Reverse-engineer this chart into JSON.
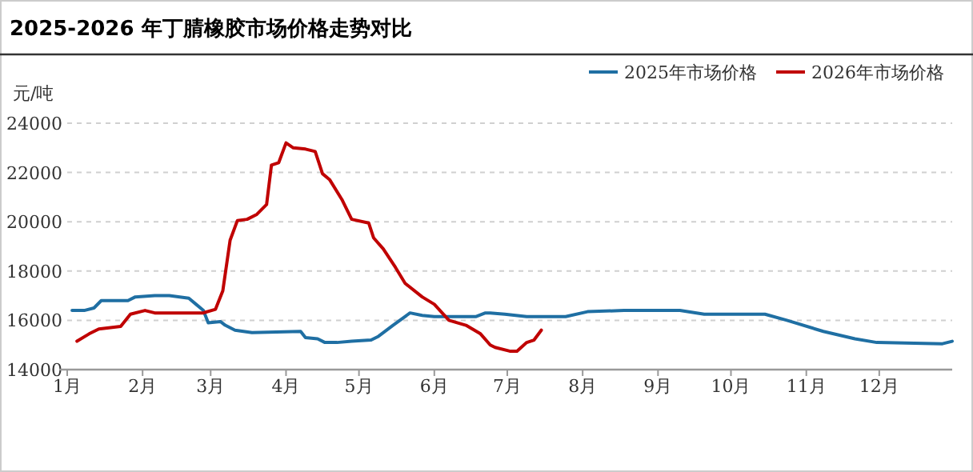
{
  "chart_data": {
    "type": "line",
    "title": "2025-2026 年丁腈橡胶市场价格走势对比",
    "ylabel": "元/吨",
    "xlim": [
      "--01-01",
      "--12-31"
    ],
    "xticks": [
      {
        "value": "--01-01",
        "label": "1月"
      },
      {
        "value": "--02-01",
        "label": "2月"
      },
      {
        "value": "--03-01",
        "label": "3月"
      },
      {
        "value": "--04-01",
        "label": "4月"
      },
      {
        "value": "--05-01",
        "label": "5月"
      },
      {
        "value": "--06-01",
        "label": "6月"
      },
      {
        "value": "--07-01",
        "label": "7月"
      },
      {
        "value": "--08-01",
        "label": "8月"
      },
      {
        "value": "--09-01",
        "label": "9月"
      },
      {
        "value": "--10-01",
        "label": "10月"
      },
      {
        "value": "--11-01",
        "label": "11月"
      },
      {
        "value": "--12-01",
        "label": "12月"
      }
    ],
    "ylim": [
      14000,
      24000
    ],
    "yticks": [
      14000,
      16000,
      18000,
      20000,
      22000,
      24000
    ],
    "grid": "y",
    "legend": "top right",
    "series": [
      {
        "name": "2025年市场价格",
        "color": "#1f6fa3",
        "x": [
          "--01-03",
          "--01-08",
          "--01-12",
          "--01-15",
          "--01-26",
          "--01-29",
          "--02-06",
          "--02-12",
          "--02-20",
          "--02-23",
          "--02-26",
          "--02-28",
          "--03-05",
          "--03-07",
          "--03-11",
          "--03-18",
          "--04-07",
          "--04-09",
          "--04-14",
          "--04-17",
          "--04-22",
          "--04-28",
          "--05-06",
          "--05-09",
          "--05-15",
          "--05-22",
          "--05-27",
          "--06-01",
          "--06-18",
          "--06-22",
          "--06-24",
          "--06-30",
          "--07-09",
          "--07-25",
          "--08-03",
          "--08-18",
          "--09-10",
          "--09-20",
          "--10-15",
          "--10-24",
          "--11-08",
          "--11-21",
          "--11-30",
          "--12-27",
          "--12-31"
        ],
        "values": [
          16400,
          16400,
          16500,
          16800,
          16800,
          16950,
          17000,
          17000,
          16900,
          16650,
          16400,
          15900,
          15950,
          15800,
          15600,
          15500,
          15550,
          15300,
          15250,
          15100,
          15100,
          15150,
          15200,
          15350,
          15800,
          16300,
          16200,
          16150,
          16150,
          16300,
          16300,
          16250,
          16150,
          16150,
          16350,
          16400,
          16400,
          16250,
          16250,
          16000,
          15550,
          15250,
          15100,
          15050,
          15150
        ]
      },
      {
        "name": "2026年市场价格",
        "color": "#c00000",
        "x": [
          "--01-05",
          "--01-10",
          "--01-14",
          "--01-23",
          "--01-27",
          "--02-02",
          "--02-06",
          "--02-26",
          "--03-03",
          "--03-06",
          "--03-09",
          "--03-12",
          "--03-16",
          "--03-20",
          "--03-24",
          "--03-26",
          "--03-29",
          "--04-01",
          "--04-04",
          "--04-09",
          "--04-13",
          "--04-16",
          "--04-19",
          "--04-24",
          "--04-28",
          "--05-05",
          "--05-07",
          "--05-11",
          "--05-16",
          "--05-20",
          "--05-27",
          "--06-01",
          "--06-07",
          "--06-14",
          "--06-20",
          "--06-24",
          "--06-26",
          "--07-02",
          "--07-05",
          "--07-09",
          "--07-12",
          "--07-15"
        ],
        "values": [
          15150,
          15450,
          15650,
          15750,
          16250,
          16400,
          16300,
          16300,
          16450,
          17200,
          19250,
          20050,
          20100,
          20300,
          20700,
          22300,
          22400,
          23200,
          23000,
          22950,
          22850,
          21950,
          21700,
          20900,
          20100,
          19950,
          19350,
          18900,
          18150,
          17500,
          16950,
          16650,
          16000,
          15800,
          15450,
          15000,
          14900,
          14750,
          14750,
          15100,
          15200,
          15600
        ]
      }
    ]
  }
}
